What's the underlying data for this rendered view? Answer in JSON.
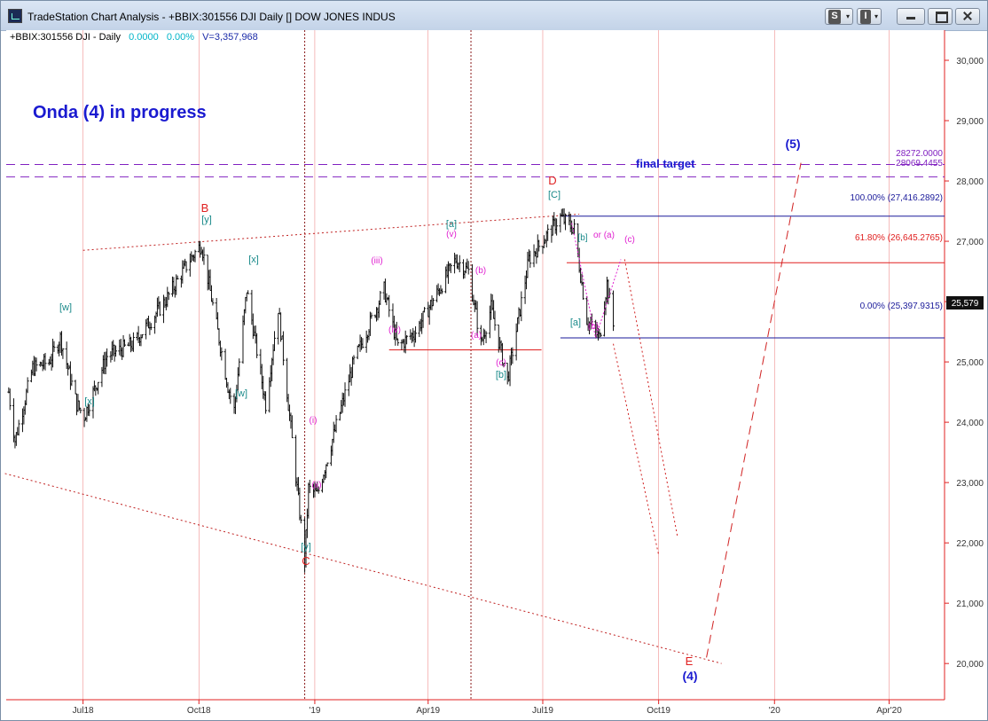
{
  "window": {
    "title": "TradeStation Chart Analysis - +BBIX:301556 DJI Daily [] DOW JONES INDUS",
    "buttons": {
      "s_label": "S",
      "i_label": "I",
      "dropdown": "▾"
    }
  },
  "symbol_bar": {
    "symbol": "+BBIX:301556 DJI - Daily",
    "change": "0.0000",
    "change_pct": "0.00%",
    "volume": "V=3,357,968"
  },
  "colors": {
    "wave_red": "#e02020",
    "wave_teal": "#1a8a8a",
    "wave_magenta": "#e020d0",
    "wave_blue": "#1a1ad0",
    "fib_red": "#e02020",
    "fib_blue": "#1a1a9a",
    "target_purple": "#8020c0"
  },
  "annotations": {
    "headline": "Onda (4) in progress",
    "final_target": "final target"
  },
  "price_axis": {
    "ticks": [
      "30,000",
      "29,000",
      "28,000",
      "27,000",
      "26,000",
      "25,000",
      "24,000",
      "23,000",
      "22,000",
      "21,000",
      "20,000"
    ],
    "last_price": "25,579"
  },
  "time_axis": {
    "ticks": [
      "Jul18",
      "Oct18",
      "'19",
      "Apr19",
      "Jul19",
      "Oct19",
      "'20",
      "Apr'20"
    ]
  },
  "levels": {
    "fib_100": "100.00% (27,416.2892)",
    "fib_618": "61.80% (26,645.2765)",
    "fib_0": "0.00% (25,397.9315)",
    "target_1": "28272.0000",
    "target_2": "28069.4455"
  },
  "wave_labels": {
    "B": "B",
    "C": "C",
    "D": "D",
    "E": "E",
    "w1": "[w]",
    "x1": "[x]",
    "y1": "[y]",
    "x2": "[x]",
    "w2": "[w]",
    "y2": "[y]",
    "i": "(i)",
    "ii": "(ii)",
    "iii": "(iii)",
    "iv": "(iv)",
    "v": "(v)",
    "a_sq": "[a]",
    "b_sq": "[b]",
    "c_sq": "[C]",
    "a_par": "(a)",
    "b_par": "(b)",
    "c_par": "(c)",
    "a2_sq": "[a]",
    "b2_sq": "[b]",
    "or_a": "or (a)",
    "c2_par": "(c)",
    "b2_par": "(b)",
    "four": "(4)",
    "five": "(5)"
  },
  "chart_data": {
    "type": "ohlc",
    "title": "",
    "x_ticks": [
      "Jul18",
      "Oct18",
      "'19",
      "Apr19",
      "Jul19",
      "Oct19",
      "'20",
      "Apr'20"
    ],
    "ylim": [
      19400,
      30500
    ],
    "y_ticks": [
      20000,
      21000,
      22000,
      23000,
      24000,
      25000,
      26000,
      27000,
      28000,
      29000,
      30000
    ],
    "price_path_keypoints": [
      {
        "x": "2018-05-03",
        "y": 24500
      },
      {
        "x": "2018-05-08",
        "y": 23700
      },
      {
        "x": "2018-05-22",
        "y": 24900
      },
      {
        "x": "2018-06-04",
        "y": 25000
      },
      {
        "x": "2018-06-13",
        "y": 25400
      },
      {
        "x": "2018-06-26",
        "y": 24300
      },
      {
        "x": "2018-07-02",
        "y": 24100
      },
      {
        "x": "2018-07-20",
        "y": 25100
      },
      {
        "x": "2018-08-10",
        "y": 25300
      },
      {
        "x": "2018-09-04",
        "y": 26000
      },
      {
        "x": "2018-09-24",
        "y": 26700
      },
      {
        "x": "2018-10-03",
        "y": 26950
      },
      {
        "x": "2018-10-24",
        "y": 24600
      },
      {
        "x": "2018-10-29",
        "y": 24200
      },
      {
        "x": "2018-11-08",
        "y": 26200
      },
      {
        "x": "2018-11-23",
        "y": 24300
      },
      {
        "x": "2018-12-03",
        "y": 25900
      },
      {
        "x": "2018-12-24",
        "y": 21700
      },
      {
        "x": "2018-12-27",
        "y": 22900
      },
      {
        "x": "2019-01-03",
        "y": 22800
      },
      {
        "x": "2019-02-01",
        "y": 25000
      },
      {
        "x": "2019-02-25",
        "y": 26200
      },
      {
        "x": "2019-03-08",
        "y": 25250
      },
      {
        "x": "2019-03-22",
        "y": 25500
      },
      {
        "x": "2019-04-23",
        "y": 26700
      },
      {
        "x": "2019-05-03",
        "y": 26500
      },
      {
        "x": "2019-05-13",
        "y": 25300
      },
      {
        "x": "2019-05-21",
        "y": 25900
      },
      {
        "x": "2019-06-03",
        "y": 24700
      },
      {
        "x": "2019-06-20",
        "y": 26700
      },
      {
        "x": "2019-07-15",
        "y": 27400
      },
      {
        "x": "2019-07-26",
        "y": 27200
      },
      {
        "x": "2019-08-05",
        "y": 25700
      },
      {
        "x": "2019-08-15",
        "y": 25400
      },
      {
        "x": "2019-08-21",
        "y": 26300
      },
      {
        "x": "2019-08-26",
        "y": 25600
      }
    ],
    "projections": [
      {
        "name": "projection-1",
        "points": [
          {
            "x": "2019-08-26",
            "y": 25300
          },
          {
            "x": "2019-10-01",
            "y": 21800
          }
        ]
      },
      {
        "name": "projection-2",
        "points": [
          {
            "x": "2019-09-04",
            "y": 26700
          },
          {
            "x": "2019-10-16",
            "y": 22100
          }
        ]
      },
      {
        "name": "wave-4-to-5",
        "points": [
          {
            "x": "2019-11-08",
            "y": 20100
          },
          {
            "x": "2020-01-22",
            "y": 28300
          }
        ]
      }
    ],
    "horizontal_levels": [
      {
        "name": "target-1",
        "y": 28272
      },
      {
        "name": "target-2",
        "y": 28069.4455
      },
      {
        "name": "fib-100",
        "y": 27416.2892
      },
      {
        "name": "fib-618",
        "y": 26645.2765
      },
      {
        "name": "fib-0",
        "y": 25397.9315
      },
      {
        "name": "support",
        "y": 25200
      }
    ],
    "trendlines": [
      {
        "name": "upper-trendline",
        "points": [
          {
            "x": "2018-07-01",
            "y": 26850
          },
          {
            "x": "2019-07-30",
            "y": 27450
          }
        ]
      },
      {
        "name": "lower-trendline",
        "points": [
          {
            "x": "2018-04-30",
            "y": 23150
          },
          {
            "x": "2019-11-20",
            "y": 20000
          }
        ]
      }
    ]
  }
}
